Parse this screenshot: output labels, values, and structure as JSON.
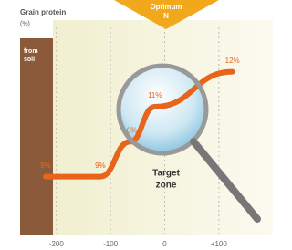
{
  "chart_data": {
    "type": "line",
    "title": "Grain protein",
    "unit": "(%)",
    "banner": [
      "Optimum",
      "N"
    ],
    "band_label": [
      "from",
      "soil"
    ],
    "annotation": [
      "Target",
      "zone"
    ],
    "x": [
      -220,
      -119,
      -64,
      -18,
      125
    ],
    "values": [
      9,
      9,
      10,
      11,
      12
    ],
    "value_labels": [
      "9%",
      "9%",
      "10%",
      "11%",
      "12%"
    ],
    "color": "#e8641b",
    "xlim": [
      -267,
      198
    ],
    "ylim": [
      7.4,
      13.4
    ],
    "xticks": [
      -200,
      -100,
      0,
      {
        "value": 100,
        "label": "+100"
      }
    ],
    "grid": true
  }
}
